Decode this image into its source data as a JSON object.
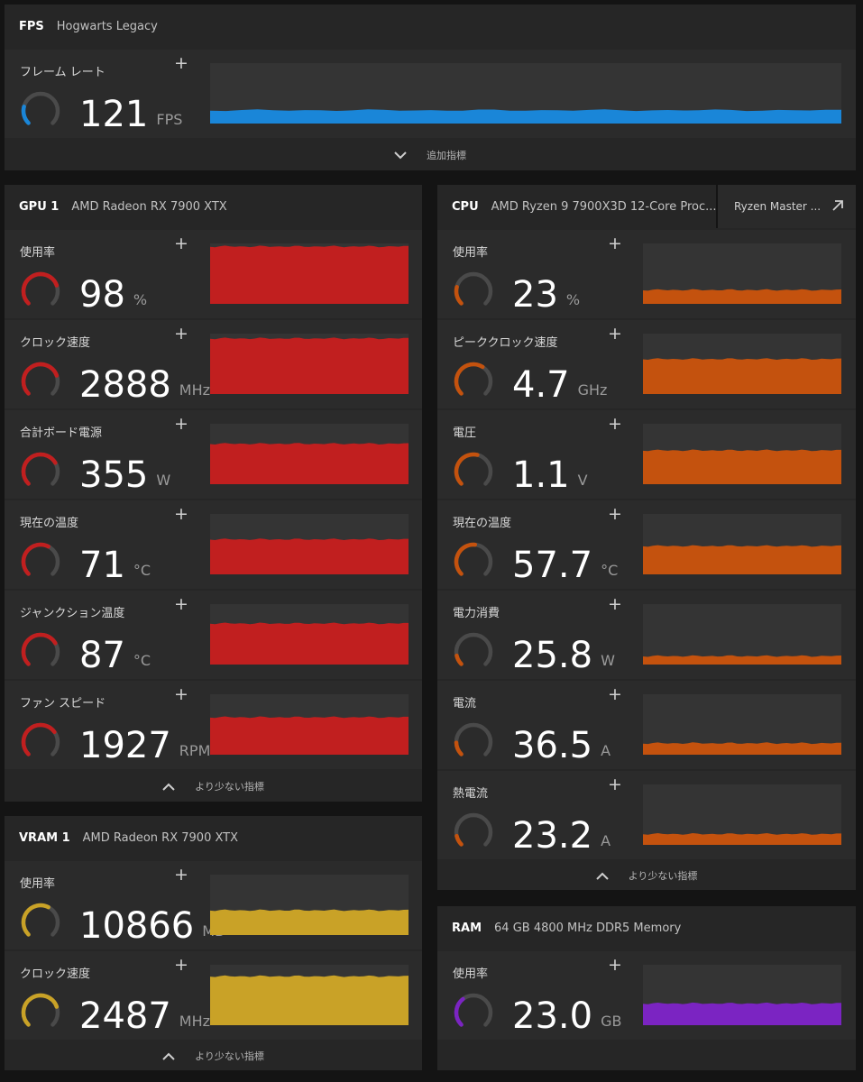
{
  "colors": {
    "fps": "#1a86d8",
    "gpu": "#c11f1f",
    "vram": "#c9a227",
    "cpu": "#c4520e",
    "ram": "#7b24c2",
    "gaugeTrack": "#4a4a4a"
  },
  "fps": {
    "title": "FPS",
    "subtitle": "Hogwarts Legacy",
    "metric": {
      "label": "フレーム レート",
      "value": "121",
      "unit": "FPS",
      "fraction": 0.22,
      "level": 0.22
    },
    "footer": "追加指標"
  },
  "gpu": {
    "title": "GPU 1",
    "subtitle": "AMD Radeon RX 7900 XTX",
    "footer": "より少ない指標",
    "metrics": [
      {
        "label": "使用率",
        "value": "98",
        "unit": "%",
        "fraction": 0.76,
        "level": 0.95
      },
      {
        "label": "クロック速度",
        "value": "2888",
        "unit": "MHz",
        "fraction": 0.76,
        "level": 0.92
      },
      {
        "label": "合計ボード電源",
        "value": "355",
        "unit": "W",
        "fraction": 0.72,
        "level": 0.67
      },
      {
        "label": "現在の温度",
        "value": "71",
        "unit": "°C",
        "fraction": 0.6,
        "level": 0.58
      },
      {
        "label": "ジャンクション温度",
        "value": "87",
        "unit": "°C",
        "fraction": 0.72,
        "level": 0.68
      },
      {
        "label": "ファン スピード",
        "value": "1927",
        "unit": "RPM",
        "fraction": 0.7,
        "level": 0.62
      }
    ]
  },
  "vram": {
    "title": "VRAM 1",
    "subtitle": "AMD Radeon RX 7900 XTX",
    "footer": "より少ない指標",
    "metrics": [
      {
        "label": "使用率",
        "value": "10866",
        "unit": "MB",
        "fraction": 0.6,
        "level": 0.41
      },
      {
        "label": "クロック速度",
        "value": "2487",
        "unit": "MHz",
        "fraction": 0.76,
        "level": 0.81
      }
    ]
  },
  "cpu": {
    "title": "CPU",
    "subtitle": "AMD Ryzen 9 7900X3D 12-Core Proc...",
    "ext_label": "Ryzen Master ...",
    "footer": "より少ない指標",
    "metrics": [
      {
        "label": "使用率",
        "value": "23",
        "unit": "%",
        "fraction": 0.22,
        "level": 0.23
      },
      {
        "label": "ピーククロック速度",
        "value": "4.7",
        "unit": "GHz",
        "fraction": 0.62,
        "level": 0.58
      },
      {
        "label": "電圧",
        "value": "1.1",
        "unit": "V",
        "fraction": 0.55,
        "level": 0.56
      },
      {
        "label": "現在の温度",
        "value": "57.7",
        "unit": "°C",
        "fraction": 0.52,
        "level": 0.47
      },
      {
        "label": "電力消費",
        "value": "25.8",
        "unit": "W",
        "fraction": 0.12,
        "level": 0.14
      },
      {
        "label": "電流",
        "value": "36.5",
        "unit": "A",
        "fraction": 0.16,
        "level": 0.19
      },
      {
        "label": "熱電流",
        "value": "23.2",
        "unit": "A",
        "fraction": 0.12,
        "level": 0.18
      }
    ]
  },
  "ram": {
    "title": "RAM",
    "subtitle": "64 GB 4800 MHz DDR5 Memory",
    "metric": {
      "label": "使用率",
      "value": "23.0",
      "unit": "GB",
      "fraction": 0.36,
      "level": 0.36
    }
  }
}
